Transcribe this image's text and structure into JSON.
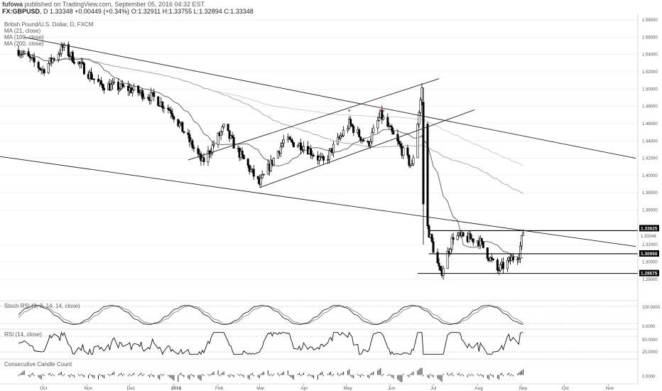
{
  "header": {
    "user": "fufowa",
    "published": "published on TradingView.com, September 05, 2016 04:32 EST",
    "symbol": "FX:GBPUSD",
    "interval": "D",
    "last": "1.33348",
    "change": "+0.00449 (+0.34%)",
    "o_label": "O:",
    "o_value": "1.32911",
    "h_label": "H:",
    "h_value": "1.33755",
    "l_label": "L:",
    "l_value": "1.32894",
    "c_label": "C:",
    "c_value": "1.33348"
  },
  "colors": {
    "candle": "#000000",
    "ma_short": "#666666",
    "ma_mid": "#aaaaaa",
    "ma_long": "#cccccc",
    "grid": "#e4e4e4",
    "tag_bg": "#000000"
  },
  "chart_data": {
    "type": "candlestick",
    "title": "British Pound/U.S. Dollar, D, FXCM",
    "legend": [
      "MA (21, close)",
      "MA (100, close)",
      "MA (200, close)"
    ],
    "x_ticks": [
      "Oct",
      "Nov",
      "Dec",
      "2016",
      "Feb",
      "Mar",
      "Apr",
      "May",
      "Jun",
      "Jul",
      "Aug",
      "Sep",
      "Oct",
      "Nov"
    ],
    "y_ticks": [
      "1.58000",
      "1.56000",
      "1.54000",
      "1.52000",
      "1.50000",
      "1.48000",
      "1.46000",
      "1.44000",
      "1.42000",
      "1.40000",
      "1.38000",
      "1.36000",
      "1.32000",
      "1.30000",
      "1.28000"
    ],
    "ylim": [
      1.27,
      1.58
    ],
    "price_tags": [
      "1.33625",
      "1.33348",
      "1.30950",
      "1.28675"
    ],
    "horizontal_levels": [
      1.33625,
      1.3095,
      1.28675
    ],
    "anchor_points": [
      {
        "date": "2015-09-14",
        "price": 1.545
      },
      {
        "date": "2015-10-01",
        "price": 1.522
      },
      {
        "date": "2015-10-15",
        "price": 1.548
      },
      {
        "date": "2015-11-10",
        "price": 1.505
      },
      {
        "date": "2015-12-01",
        "price": 1.5
      },
      {
        "date": "2015-12-18",
        "price": 1.49
      },
      {
        "date": "2015-12-30",
        "price": 1.475
      },
      {
        "date": "2016-01-21",
        "price": 1.415
      },
      {
        "date": "2016-02-05",
        "price": 1.455
      },
      {
        "date": "2016-02-15",
        "price": 1.428
      },
      {
        "date": "2016-03-01",
        "price": 1.39
      },
      {
        "date": "2016-03-18",
        "price": 1.44
      },
      {
        "date": "2016-04-01",
        "price": 1.435
      },
      {
        "date": "2016-04-15",
        "price": 1.415
      },
      {
        "date": "2016-05-03",
        "price": 1.46
      },
      {
        "date": "2016-05-16",
        "price": 1.435
      },
      {
        "date": "2016-05-25",
        "price": 1.47
      },
      {
        "date": "2016-06-16",
        "price": 1.41
      },
      {
        "date": "2016-06-23",
        "price": 1.5
      },
      {
        "date": "2016-06-27",
        "price": 1.34
      },
      {
        "date": "2016-07-06",
        "price": 1.285
      },
      {
        "date": "2016-07-15",
        "price": 1.33
      },
      {
        "date": "2016-08-02",
        "price": 1.325
      },
      {
        "date": "2016-08-15",
        "price": 1.29
      },
      {
        "date": "2016-08-30",
        "price": 1.31
      },
      {
        "date": "2016-09-02",
        "price": 1.3335
      }
    ],
    "trendlines": [
      {
        "from": {
          "date": "2015-09-18",
          "price": 1.56
        },
        "to": {
          "date": "2016-11-20",
          "price": 1.42
        }
      },
      {
        "from": {
          "date": "2015-09-01",
          "price": 1.422
        },
        "to": {
          "date": "2016-11-20",
          "price": 1.318
        }
      },
      {
        "from": {
          "date": "2016-01-11",
          "price": 1.418
        },
        "to": {
          "date": "2016-07-05",
          "price": 1.512
        }
      },
      {
        "from": {
          "date": "2016-03-01",
          "price": 1.386
        },
        "to": {
          "date": "2016-07-30",
          "price": 1.476
        }
      }
    ],
    "panels": [
      {
        "name": "Stoch RSI (3, 3, 14, 14, close)",
        "ticks": [
          "100.0000",
          "0.0000"
        ]
      },
      {
        "name": "RSI (14, close)",
        "ticks": [
          "50.0000",
          "25.0000"
        ]
      },
      {
        "name": "Consecutive Candle Count",
        "ticks": [
          "0.0000"
        ]
      }
    ]
  }
}
